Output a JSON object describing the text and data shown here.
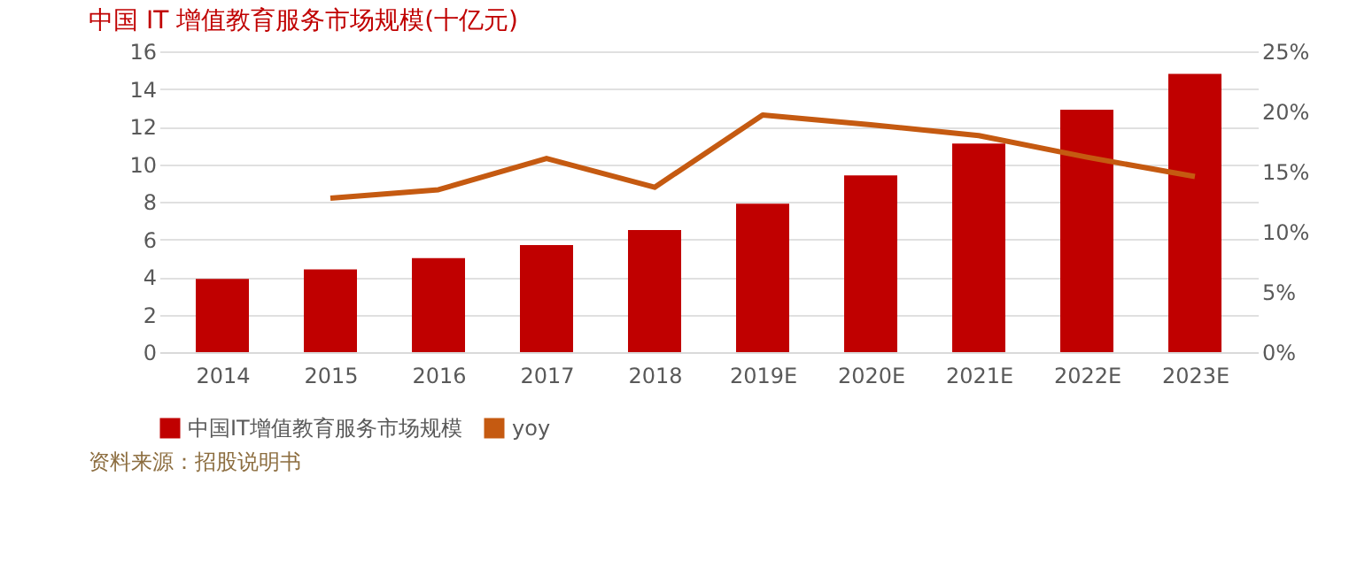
{
  "chart_data": {
    "type": "bar",
    "title": "中国 IT 增值教育服务市场规模(十亿元)",
    "categories": [
      "2014",
      "2015",
      "2016",
      "2017",
      "2018",
      "2019E",
      "2020E",
      "2021E",
      "2022E",
      "2023E"
    ],
    "series": [
      {
        "name": "中国IT增值教育服务市场规模",
        "color": "#c00000",
        "values": [
          3.9,
          4.4,
          5.0,
          5.7,
          6.5,
          7.9,
          9.4,
          11.1,
          12.9,
          14.8
        ]
      },
      {
        "name": "yoy",
        "type": "line",
        "axis": "y2",
        "color": "#c55a11",
        "values": [
          null,
          12.8,
          13.5,
          16.1,
          13.7,
          19.7,
          18.9,
          18.0,
          16.2,
          14.6
        ]
      }
    ],
    "ylim": [
      0,
      16
    ],
    "yticks": [
      0,
      2,
      4,
      6,
      8,
      10,
      12,
      14,
      16
    ],
    "y2lim": [
      0,
      25
    ],
    "y2ticks": [
      {
        "value": 0,
        "label": "0%"
      },
      {
        "value": 5,
        "label": "5%"
      },
      {
        "value": 10,
        "label": "10%"
      },
      {
        "value": 15,
        "label": "15%"
      },
      {
        "value": 20,
        "label": "20%"
      },
      {
        "value": 25,
        "label": "25%"
      }
    ],
    "grid": "y",
    "legend": "bottom",
    "marker": "none",
    "annotations": [
      "资料来源：招股说明书"
    ]
  }
}
